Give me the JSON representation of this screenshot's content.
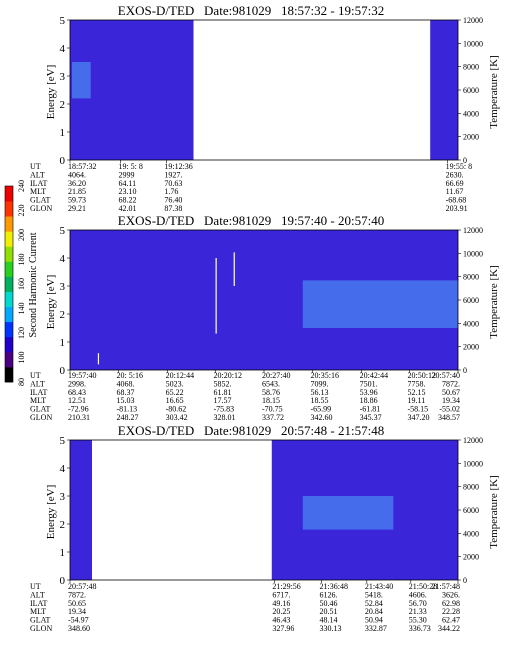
{
  "colorbar": {
    "label": "Second Harmonic Current",
    "ticks": [
      "80",
      "100",
      "120",
      "140",
      "160",
      "180",
      "200",
      "220",
      "240"
    ],
    "colors": [
      "#000000",
      "#4b0082",
      "#2200cc",
      "#0033ff",
      "#00a8ff",
      "#00d8d0",
      "#00b060",
      "#28d020",
      "#90e000",
      "#f0f000",
      "#ff9900",
      "#ff3300",
      "#ee0000"
    ]
  },
  "colors": {
    "spectrogram_background": "#3a26d8",
    "spectrogram_high": "#4a86f2",
    "trace": "#ffffff"
  },
  "chart_data": [
    {
      "type": "heatmap",
      "title": "EXOS-D/TED   Date:981029   18:57:32 - 19:57:32",
      "ylabel": "Energy [eV]",
      "ylim": [
        0,
        5
      ],
      "yticks": [
        "0",
        "1",
        "2",
        "3",
        "4",
        "5"
      ],
      "y2label": "Temperature [K]",
      "y2lim": [
        0,
        12000
      ],
      "y2ticks": [
        "0",
        "2000",
        "4000",
        "6000",
        "8000",
        "10000",
        "12000"
      ],
      "time_range_min": [
        0,
        60
      ],
      "data_intervals_min": [
        [
          0,
          19.1
        ],
        [
          55.7,
          60
        ]
      ],
      "traces": [],
      "bright_regions": [
        {
          "t": [
            0.3,
            3.2
          ],
          "e": [
            2.2,
            3.5
          ]
        }
      ],
      "row_labels": [
        "UT",
        "ALT",
        "ILAT",
        "MLT",
        "GLAT",
        "GLON"
      ],
      "columns": [
        {
          "t": 0,
          "values": [
            "18:57:32",
            "4064.",
            "36.20",
            "21.85",
            "59.73",
            "29.21"
          ]
        },
        {
          "t": 7.8,
          "values": [
            "19: 5: 8",
            "2999",
            "64.11",
            "23.10",
            "68.22",
            "42.01"
          ]
        },
        {
          "t": 14.9,
          "values": [
            "19:12:36",
            "1927.",
            "70.63",
            "1.76",
            "76.40",
            "87.38"
          ]
        },
        {
          "t": 58.4,
          "values": [
            "19:55: 8",
            "2630.",
            "66.69",
            "11.67",
            "-68.68",
            "203.91"
          ]
        }
      ]
    },
    {
      "type": "heatmap",
      "title": "EXOS-D/TED   Date:981029   19:57:40 - 20:57:40",
      "ylabel": "Energy [eV]",
      "ylim": [
        0,
        5
      ],
      "yticks": [
        "0",
        "1",
        "2",
        "3",
        "4",
        "5"
      ],
      "y2label": "Temperature [K]",
      "y2lim": [
        0,
        12000
      ],
      "y2ticks": [
        "0",
        "2000",
        "4000",
        "6000",
        "8000",
        "10000",
        "12000"
      ],
      "time_range_min": [
        0,
        60
      ],
      "data_intervals_min": [
        [
          0,
          60
        ]
      ],
      "traces": [
        {
          "t": 4.4,
          "e": [
            0.2,
            0.6
          ]
        },
        {
          "t": 22.6,
          "e": [
            1.3,
            4.0
          ]
        },
        {
          "t": 25.4,
          "e": [
            3.0,
            4.2
          ]
        }
      ],
      "bright_regions": [
        {
          "t": [
            36,
            60
          ],
          "e": [
            1.5,
            3.2
          ]
        }
      ],
      "row_labels": [
        "UT",
        "ALT",
        "ILAT",
        "MLT",
        "GLAT",
        "GLON"
      ],
      "columns": [
        {
          "t": 0,
          "values": [
            "19:57:40",
            "2998.",
            "68.43",
            "12.51",
            "-72.96",
            "210.31"
          ]
        },
        {
          "t": 7.5,
          "values": [
            "20: 5:16",
            "4068.",
            "68.37",
            "15.03",
            "-81.13",
            "248.27"
          ]
        },
        {
          "t": 15.1,
          "values": [
            "20:12:44",
            "5023.",
            "65.22",
            "16.65",
            "-80.62",
            "303.42"
          ]
        },
        {
          "t": 22.5,
          "values": [
            "20:20:12",
            "5852.",
            "61.81",
            "17.57",
            "-75.83",
            "328.01"
          ]
        },
        {
          "t": 30.0,
          "values": [
            "20:27:40",
            "6543.",
            "58.76",
            "18.15",
            "-70.75",
            "337.72"
          ]
        },
        {
          "t": 37.5,
          "values": [
            "20:35:16",
            "7099.",
            "56.13",
            "18.55",
            "-65.99",
            "342.60"
          ]
        },
        {
          "t": 45.1,
          "values": [
            "20:42:44",
            "7501.",
            "53.96",
            "18.86",
            "-61.81",
            "345.37"
          ]
        },
        {
          "t": 52.5,
          "values": [
            "20:50:12",
            "7758.",
            "52.15",
            "19.11",
            "-58.15",
            "347.20"
          ]
        },
        {
          "t": 60,
          "values": [
            "20:57:40",
            "7872.",
            "50.67",
            "19.34",
            "-55.02",
            "348.57"
          ]
        }
      ]
    },
    {
      "type": "heatmap",
      "title": "EXOS-D/TED   Date:981029   20:57:48 - 21:57:48",
      "ylabel": "Energy [eV]",
      "ylim": [
        0,
        5
      ],
      "yticks": [
        "0",
        "1",
        "2",
        "3",
        "4",
        "5"
      ],
      "y2label": "Temperature [K]",
      "y2lim": [
        0,
        12000
      ],
      "y2ticks": [
        "0",
        "2000",
        "4000",
        "6000",
        "8000",
        "10000",
        "12000"
      ],
      "time_range_min": [
        0,
        60
      ],
      "data_intervals_min": [
        [
          0,
          3.4
        ],
        [
          31.2,
          60
        ]
      ],
      "traces": [],
      "bright_regions": [
        {
          "t": [
            36,
            50
          ],
          "e": [
            1.8,
            3.0
          ]
        }
      ],
      "row_labels": [
        "UT",
        "ALT",
        "ILAT",
        "MLT",
        "GLAT",
        "GLON"
      ],
      "columns": [
        {
          "t": 0,
          "values": [
            "20:57:48",
            "7872.",
            "50.65",
            "19.34",
            "-54.97",
            "348.60"
          ]
        },
        {
          "t": 31.6,
          "values": [
            "21:29:56",
            "6717.",
            "49.16",
            "20.25",
            "46.43",
            "327.96"
          ]
        },
        {
          "t": 38.9,
          "values": [
            "21:36:48",
            "6126.",
            "50.46",
            "20.51",
            "48.14",
            "330.13"
          ]
        },
        {
          "t": 45.9,
          "values": [
            "21:43:40",
            "5418.",
            "52.84",
            "20.84",
            "50.94",
            "332.87"
          ]
        },
        {
          "t": 52.7,
          "values": [
            "21:50:28",
            "4606.",
            "56.70",
            "21.33",
            "55.30",
            "336.73"
          ]
        },
        {
          "t": 60,
          "values": [
            "21:57:48",
            "3626.",
            "62.98",
            "22.28",
            "62.47",
            "344.22"
          ]
        }
      ]
    }
  ]
}
